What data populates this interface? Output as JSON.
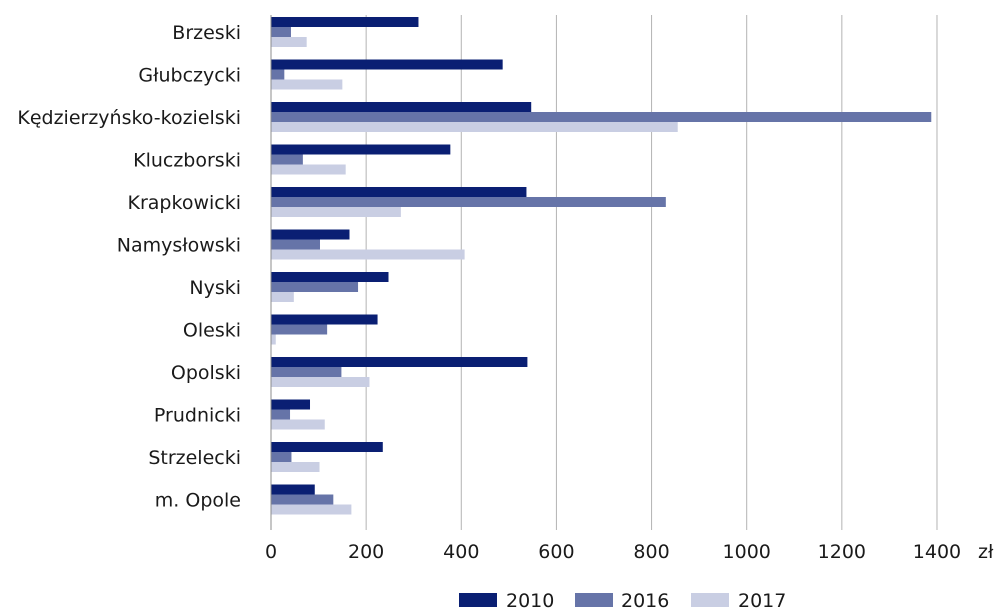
{
  "chart_data": {
    "type": "bar",
    "orientation": "horizontal",
    "categories": [
      "Brzeski",
      "Głubczycki",
      "Kędzierzyńsko-kozielski",
      "Kluczborski",
      "Krapkowicki",
      "Namysłowski",
      "Nyski",
      "Oleski",
      "Opolski",
      "Prudnicki",
      "Strzelecki",
      "m. Opole"
    ],
    "series": [
      {
        "name": "2010",
        "color": "#0a1f73",
        "values": [
          310,
          487,
          547,
          377,
          537,
          165,
          247,
          224,
          539,
          82,
          235,
          92
        ]
      },
      {
        "name": "2016",
        "color": "#6674a8",
        "values": [
          42,
          28,
          1388,
          67,
          830,
          103,
          183,
          118,
          148,
          40,
          43,
          131
        ]
      },
      {
        "name": "2017",
        "color": "#c9cee3",
        "values": [
          75,
          150,
          855,
          157,
          273,
          407,
          48,
          10,
          207,
          113,
          102,
          169
        ]
      }
    ],
    "xlim": [
      0,
      1400
    ],
    "xticks": [
      "0",
      "200",
      "400",
      "600",
      "800",
      "1000",
      "1200",
      "1400"
    ],
    "unit": "zł",
    "grid": "vertical",
    "legend_position": "bottom"
  }
}
